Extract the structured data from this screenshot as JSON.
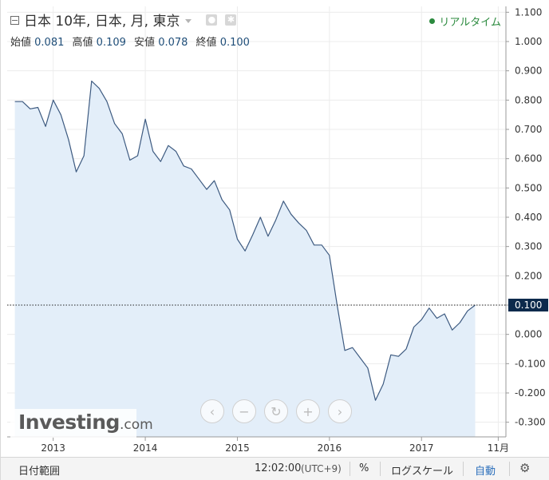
{
  "header": {
    "title": "日本 10年, 日本, 月, 東京",
    "realtime_label": "リアルタイム"
  },
  "ohlc": {
    "open_label": "始値",
    "open_value": "0.081",
    "high_label": "高値",
    "high_value": "0.109",
    "low_label": "安値",
    "low_value": "0.078",
    "close_label": "終値",
    "close_value": "0.100"
  },
  "logo": {
    "brand": "Investing",
    "tld": ".com"
  },
  "bottom_bar": {
    "date_range": "日付範囲",
    "time": "12:02:00",
    "timezone": "(UTC+9)",
    "percent": "%",
    "log_scale": "ログスケール",
    "auto": "自動"
  },
  "colors": {
    "line": "#3d5a80",
    "area": "#e3eef9",
    "current_badge": "#0d2a4c",
    "realtime": "#2b8a3e",
    "grid": "#ececec"
  },
  "chart_data": {
    "type": "area",
    "title": "",
    "xlabel": "",
    "ylabel": "",
    "ylim": [
      -0.35,
      1.12
    ],
    "y_ticks": [
      1.1,
      1.0,
      0.9,
      0.8,
      0.7,
      0.6,
      0.5,
      0.4,
      0.3,
      0.2,
      0.1,
      0.0,
      -0.1,
      -0.2,
      -0.3
    ],
    "y_tick_labels": [
      "1.100",
      "1.000",
      "0.900",
      "0.800",
      "0.700",
      "0.600",
      "0.500",
      "0.400",
      "0.300",
      "0.200",
      "0.100",
      "0.000",
      "-0.100",
      "-0.200",
      "-0.300"
    ],
    "x_ticks": [
      {
        "date": "2013-01",
        "label": "2013"
      },
      {
        "date": "2014-01",
        "label": "2014"
      },
      {
        "date": "2015-01",
        "label": "2015"
      },
      {
        "date": "2016-01",
        "label": "2016"
      },
      {
        "date": "2017-01",
        "label": "2017"
      },
      {
        "date": "2017-11",
        "label": "11月"
      }
    ],
    "xlim": [
      "2012-07",
      "2017-12"
    ],
    "current_value": 0.1,
    "current_value_label": "0.100",
    "grid": true,
    "series": [
      {
        "dates": [
          "2012-08",
          "2012-09",
          "2012-10",
          "2012-11",
          "2012-12",
          "2013-01",
          "2013-02",
          "2013-03",
          "2013-04",
          "2013-05",
          "2013-06",
          "2013-07",
          "2013-08",
          "2013-09",
          "2013-10",
          "2013-11",
          "2013-12",
          "2014-01",
          "2014-02",
          "2014-03",
          "2014-04",
          "2014-05",
          "2014-06",
          "2014-07",
          "2014-08",
          "2014-09",
          "2014-10",
          "2014-11",
          "2014-12",
          "2015-01",
          "2015-02",
          "2015-03",
          "2015-04",
          "2015-05",
          "2015-06",
          "2015-07",
          "2015-08",
          "2015-09",
          "2015-10",
          "2015-11",
          "2015-12",
          "2016-01",
          "2016-02",
          "2016-03",
          "2016-04",
          "2016-05",
          "2016-06",
          "2016-07",
          "2016-08",
          "2016-09",
          "2016-10",
          "2016-11",
          "2016-12",
          "2017-01",
          "2017-02",
          "2017-03",
          "2017-04",
          "2017-05",
          "2017-06",
          "2017-07",
          "2017-08"
        ],
        "values": [
          0.795,
          0.795,
          0.77,
          0.775,
          0.71,
          0.8,
          0.75,
          0.665,
          0.555,
          0.61,
          0.865,
          0.84,
          0.795,
          0.72,
          0.685,
          0.595,
          0.61,
          0.735,
          0.625,
          0.59,
          0.645,
          0.625,
          0.575,
          0.565,
          0.53,
          0.495,
          0.525,
          0.46,
          0.425,
          0.325,
          0.285,
          0.34,
          0.4,
          0.335,
          0.39,
          0.455,
          0.41,
          0.38,
          0.355,
          0.305,
          0.305,
          0.27,
          0.1,
          -0.055,
          -0.045,
          -0.08,
          -0.115,
          -0.225,
          -0.17,
          -0.07,
          -0.075,
          -0.05,
          0.025,
          0.05,
          0.09,
          0.055,
          0.07,
          0.015,
          0.04,
          0.08,
          0.1
        ]
      }
    ]
  }
}
